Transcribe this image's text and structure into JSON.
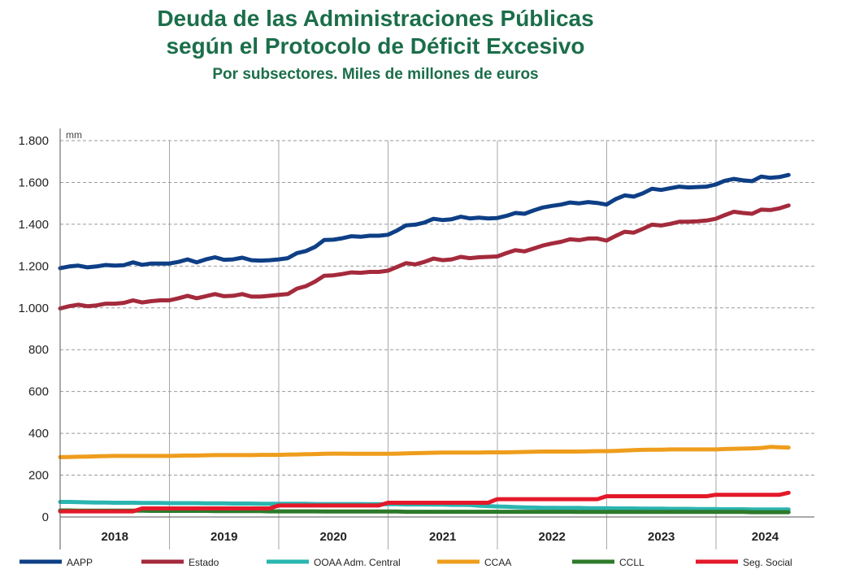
{
  "title_line1": "Deuda de las Administraciones Públicas",
  "title_line2": "según el Protocolo de Déficit Excesivo",
  "subtitle": "Por subsectores. Miles de millones de euros",
  "chart_data": {
    "type": "line",
    "title": "Deuda de las Administraciones Públicas según el Protocolo de Déficit Excesivo",
    "subtitle": "Por subsectores. Miles de millones de euros",
    "unit_label": "mm",
    "ylim": [
      0,
      1800
    ],
    "yticks": [
      0,
      200,
      400,
      600,
      800,
      1000,
      1200,
      1400,
      1600,
      1800
    ],
    "ytick_labels": [
      "0",
      "200",
      "400",
      "600",
      "800",
      "1.000",
      "1.200",
      "1.400",
      "1.600",
      "1.800"
    ],
    "x_start": 2017.5,
    "x_end": 2024.4,
    "x_step": 0.0833,
    "year_labels": [
      "2018",
      "2019",
      "2020",
      "2021",
      "2022",
      "2023",
      "2024"
    ],
    "year_dividers": [
      2018.5,
      2019.5,
      2020.5,
      2021.5,
      2022.5,
      2023.5
    ],
    "grid": true,
    "legend_position": "bottom",
    "series": [
      {
        "name": "AAPP",
        "color": "#0e3f86",
        "values": [
          1190,
          1198,
          1202,
          1194,
          1198,
          1205,
          1202,
          1204,
          1218,
          1206,
          1212,
          1212,
          1212,
          1220,
          1232,
          1218,
          1232,
          1242,
          1230,
          1232,
          1240,
          1228,
          1226,
          1228,
          1232,
          1238,
          1262,
          1272,
          1292,
          1325,
          1326,
          1333,
          1343,
          1340,
          1345,
          1345,
          1350,
          1370,
          1395,
          1398,
          1408,
          1426,
          1420,
          1424,
          1436,
          1428,
          1432,
          1428,
          1430,
          1440,
          1454,
          1450,
          1466,
          1480,
          1488,
          1494,
          1504,
          1500,
          1506,
          1502,
          1494,
          1520,
          1538,
          1532,
          1548,
          1570,
          1564,
          1572,
          1580,
          1576,
          1578,
          1580,
          1590,
          1608,
          1617,
          1610,
          1606,
          1628,
          1622,
          1626,
          1636
        ]
      },
      {
        "name": "Estado",
        "color": "#a42a3c",
        "values": [
          997,
          1008,
          1015,
          1008,
          1012,
          1020,
          1020,
          1024,
          1036,
          1026,
          1032,
          1036,
          1036,
          1046,
          1058,
          1046,
          1056,
          1066,
          1056,
          1058,
          1066,
          1054,
          1054,
          1058,
          1062,
          1066,
          1092,
          1104,
          1126,
          1154,
          1156,
          1162,
          1170,
          1168,
          1172,
          1172,
          1178,
          1196,
          1214,
          1208,
          1220,
          1236,
          1228,
          1232,
          1244,
          1238,
          1242,
          1244,
          1246,
          1262,
          1276,
          1270,
          1284,
          1298,
          1308,
          1316,
          1328,
          1324,
          1332,
          1332,
          1322,
          1344,
          1364,
          1360,
          1378,
          1398,
          1394,
          1402,
          1412,
          1412,
          1414,
          1418,
          1426,
          1444,
          1460,
          1454,
          1450,
          1470,
          1468,
          1476,
          1490
        ]
      },
      {
        "name": "OOAA Adm. Central",
        "color": "#2ab5b0",
        "values": [
          72,
          72,
          71,
          70,
          69,
          69,
          68,
          68,
          68,
          67,
          67,
          67,
          66,
          66,
          66,
          66,
          65,
          65,
          65,
          64,
          64,
          64,
          63,
          63,
          63,
          63,
          63,
          63,
          62,
          62,
          62,
          62,
          62,
          62,
          61,
          61,
          61,
          61,
          60,
          60,
          60,
          59,
          59,
          58,
          58,
          57,
          54,
          52,
          50,
          49,
          47,
          46,
          45,
          44,
          44,
          43,
          43,
          43,
          42,
          42,
          42,
          41,
          41,
          41,
          40,
          40,
          40,
          39,
          39,
          39,
          38,
          38,
          38,
          37,
          37,
          37,
          36,
          36,
          36,
          36,
          36
        ]
      },
      {
        "name": "CCAA",
        "color": "#ee9d1c",
        "values": [
          286,
          287,
          288,
          289,
          290,
          291,
          292,
          292,
          292,
          292,
          292,
          292,
          292,
          293,
          294,
          294,
          295,
          296,
          296,
          296,
          296,
          296,
          297,
          297,
          297,
          298,
          299,
          300,
          301,
          302,
          303,
          303,
          302,
          302,
          302,
          302,
          302,
          303,
          304,
          305,
          306,
          307,
          308,
          308,
          308,
          308,
          308,
          309,
          309,
          309,
          310,
          311,
          312,
          313,
          313,
          313,
          313,
          313,
          314,
          315,
          315,
          316,
          318,
          320,
          321,
          322,
          322,
          323,
          323,
          323,
          323,
          323,
          323,
          325,
          326,
          327,
          328,
          330,
          335,
          333,
          332
        ]
      },
      {
        "name": "CCLL",
        "color": "#2d7a2a",
        "values": [
          31,
          31,
          30,
          30,
          30,
          30,
          30,
          30,
          30,
          30,
          29,
          29,
          29,
          29,
          29,
          29,
          29,
          28,
          28,
          28,
          28,
          28,
          28,
          27,
          27,
          27,
          27,
          27,
          27,
          26,
          26,
          26,
          26,
          26,
          26,
          26,
          26,
          26,
          25,
          25,
          25,
          25,
          25,
          25,
          25,
          25,
          25,
          25,
          25,
          25,
          25,
          25,
          25,
          25,
          25,
          25,
          25,
          24,
          24,
          24,
          24,
          24,
          24,
          24,
          24,
          24,
          24,
          24,
          24,
          24,
          24,
          24,
          24,
          24,
          24,
          24,
          23,
          23,
          23,
          23,
          23
        ]
      },
      {
        "name": "Seg. Social",
        "color": "#e3192a",
        "values": [
          27,
          27,
          27,
          27,
          27,
          27,
          27,
          27,
          27,
          41,
          41,
          41,
          41,
          41,
          41,
          41,
          41,
          41,
          41,
          41,
          41,
          41,
          41,
          41,
          55,
          55,
          55,
          55,
          55,
          55,
          55,
          55,
          55,
          55,
          55,
          55,
          68,
          68,
          68,
          68,
          68,
          68,
          68,
          68,
          68,
          68,
          68,
          68,
          85,
          85,
          85,
          85,
          85,
          85,
          85,
          85,
          85,
          85,
          85,
          85,
          99,
          99,
          99,
          99,
          99,
          99,
          99,
          99,
          99,
          99,
          99,
          99,
          106,
          106,
          106,
          106,
          106,
          106,
          106,
          106,
          116
        ]
      }
    ]
  }
}
